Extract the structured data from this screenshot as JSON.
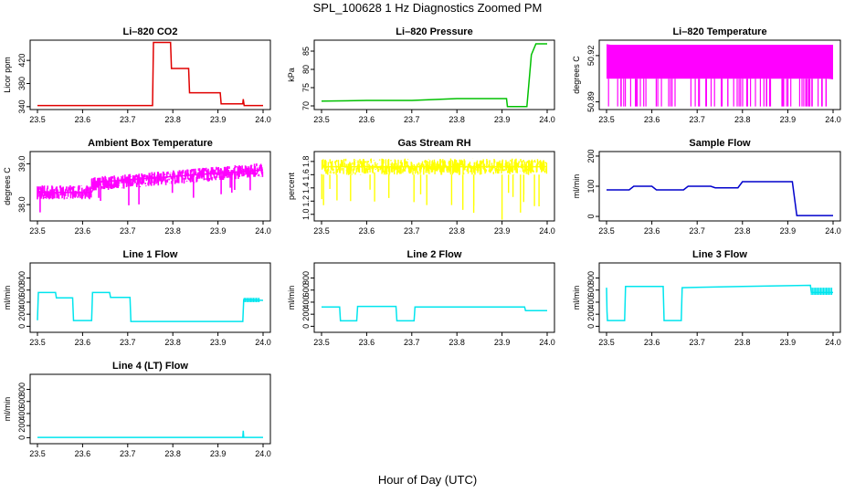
{
  "figure": {
    "title": "SPL_100628  1 Hz Diagnostics Zoomed PM",
    "xlabel": "Hour of Day (UTC)"
  },
  "chart_data": [
    {
      "type": "line",
      "title": "Li–820 CO2",
      "ylabel": "Licor ppm",
      "color": "#e00000",
      "xlim": [
        23.5,
        24.0
      ],
      "ylim": [
        335,
        455
      ],
      "xticks": [
        "23.5",
        "23.6",
        "23.7",
        "23.8",
        "23.9",
        "24.0"
      ],
      "yticks": [
        "340",
        "380",
        "420"
      ],
      "x": [
        23.5,
        23.6,
        23.7,
        23.755,
        23.757,
        23.795,
        23.797,
        23.835,
        23.837,
        23.905,
        23.907,
        23.955,
        23.956,
        23.958,
        24.0
      ],
      "y": [
        342,
        342,
        342,
        342,
        451,
        451,
        406,
        406,
        364,
        364,
        345,
        345,
        353,
        342,
        342
      ]
    },
    {
      "type": "line",
      "title": "Li–820 Pressure",
      "ylabel": "kPa",
      "color": "#00c000",
      "xlim": [
        23.5,
        24.0
      ],
      "ylim": [
        69,
        88
      ],
      "xticks": [
        "23.5",
        "23.6",
        "23.7",
        "23.8",
        "23.9",
        "24.0"
      ],
      "yticks": [
        "70",
        "75",
        "80",
        "85"
      ],
      "x": [
        23.5,
        23.6,
        23.7,
        23.8,
        23.91,
        23.912,
        23.955,
        23.965,
        23.975,
        24.0
      ],
      "y": [
        71.3,
        71.5,
        71.5,
        72,
        72,
        69.8,
        69.8,
        84,
        87,
        87
      ]
    },
    {
      "type": "line",
      "title": "Li–820 Temperature",
      "ylabel": "degrees C",
      "color": "#ff00ff",
      "xlim": [
        23.5,
        24.0
      ],
      "ylim": [
        50.885,
        50.93
      ],
      "xticks": [
        "23.5",
        "23.6",
        "23.7",
        "23.8",
        "23.9",
        "24.0"
      ],
      "yticks": [
        "50.89",
        "50.92"
      ],
      "x": [
        23.5,
        24.0
      ],
      "y": [
        50.927,
        50.905
      ]
    },
    {
      "type": "line",
      "title": "Ambient Box Temperature",
      "ylabel": "degrees C",
      "color": "#ff00ff",
      "xlim": [
        23.5,
        24.0
      ],
      "ylim": [
        37.6,
        39.3
      ],
      "xticks": [
        "23.5",
        "23.6",
        "23.7",
        "23.8",
        "23.9",
        "24.0"
      ],
      "yticks": [
        "38.0",
        "39.0"
      ],
      "x": [
        23.5,
        23.62,
        23.63,
        24.0
      ],
      "y": [
        38.3,
        38.3,
        38.55,
        38.85
      ]
    },
    {
      "type": "line",
      "title": "Gas Stream RH",
      "ylabel": "percent",
      "color": "#ffff00",
      "xlim": [
        23.5,
        24.0
      ],
      "ylim": [
        0.9,
        1.95
      ],
      "xticks": [
        "23.5",
        "23.6",
        "23.7",
        "23.8",
        "23.9",
        "24.0"
      ],
      "yticks": [
        "1.0",
        "1.2",
        "1.4",
        "1.6",
        "1.8"
      ],
      "x": [
        23.5,
        24.0
      ],
      "y": [
        1.72,
        1.72
      ]
    },
    {
      "type": "line",
      "title": "Sample Flow",
      "ylabel": "ml/min",
      "color": "#0000cc",
      "xlim": [
        23.5,
        24.0
      ],
      "ylim": [
        -15,
        215
      ],
      "xticks": [
        "23.5",
        "23.6",
        "23.7",
        "23.8",
        "23.9",
        "24.0"
      ],
      "yticks": [
        "0",
        "100",
        "200"
      ],
      "x": [
        23.5,
        23.55,
        23.56,
        23.6,
        23.61,
        23.67,
        23.68,
        23.73,
        23.74,
        23.79,
        23.8,
        23.91,
        23.92,
        24.0
      ],
      "y": [
        88,
        88,
        100,
        100,
        88,
        88,
        100,
        100,
        95,
        95,
        115,
        115,
        3,
        3
      ]
    },
    {
      "type": "line",
      "title": "Line 1 Flow",
      "ylabel": "ml/min",
      "color": "#00e5ee",
      "xlim": [
        23.5,
        24.0
      ],
      "ylim": [
        -100,
        1050
      ],
      "xticks": [
        "23.5",
        "23.6",
        "23.7",
        "23.8",
        "23.9",
        "24.0"
      ],
      "yticks": [
        "0",
        "200",
        "400",
        "600",
        "800"
      ],
      "x": [
        23.5,
        23.502,
        23.54,
        23.542,
        23.578,
        23.58,
        23.62,
        23.622,
        23.66,
        23.662,
        23.705,
        23.707,
        23.955,
        23.957,
        24.0
      ],
      "y": [
        100,
        560,
        560,
        470,
        470,
        95,
        95,
        560,
        560,
        480,
        480,
        80,
        80,
        440,
        430
      ]
    },
    {
      "type": "line",
      "title": "Line 2 Flow",
      "ylabel": "ml/min",
      "color": "#00e5ee",
      "xlim": [
        23.5,
        24.0
      ],
      "ylim": [
        -100,
        1050
      ],
      "xticks": [
        "23.5",
        "23.6",
        "23.7",
        "23.8",
        "23.9",
        "24.0"
      ],
      "yticks": [
        "0",
        "200",
        "400",
        "600",
        "800"
      ],
      "x": [
        23.5,
        23.54,
        23.542,
        23.578,
        23.58,
        23.665,
        23.667,
        23.705,
        23.707,
        23.95,
        23.952,
        24.0
      ],
      "y": [
        320,
        320,
        90,
        90,
        330,
        330,
        90,
        90,
        320,
        320,
        260,
        260
      ]
    },
    {
      "type": "line",
      "title": "Line 3 Flow",
      "ylabel": "ml/min",
      "color": "#00e5ee",
      "xlim": [
        23.5,
        24.0
      ],
      "ylim": [
        -100,
        1050
      ],
      "xticks": [
        "23.5",
        "23.6",
        "23.7",
        "23.8",
        "23.9",
        "24.0"
      ],
      "yticks": [
        "0",
        "200",
        "400",
        "600",
        "800"
      ],
      "x": [
        23.5,
        23.501,
        23.502,
        23.54,
        23.542,
        23.625,
        23.627,
        23.665,
        23.667,
        23.8,
        23.95,
        23.952,
        24.0
      ],
      "y": [
        640,
        250,
        95,
        95,
        660,
        660,
        95,
        95,
        640,
        660,
        680,
        560,
        560
      ]
    },
    {
      "type": "line",
      "title": "Line 4 (LT) Flow",
      "ylabel": "ml/min",
      "color": "#00e5ee",
      "xlim": [
        23.5,
        24.0
      ],
      "ylim": [
        -100,
        1050
      ],
      "xticks": [
        "23.5",
        "23.6",
        "23.7",
        "23.8",
        "23.9",
        "24.0"
      ],
      "yticks": [
        "0",
        "200",
        "400",
        "600",
        "800"
      ],
      "x": [
        23.5,
        23.955,
        23.956,
        23.957,
        24.0
      ],
      "y": [
        5,
        5,
        115,
        5,
        5
      ]
    }
  ]
}
